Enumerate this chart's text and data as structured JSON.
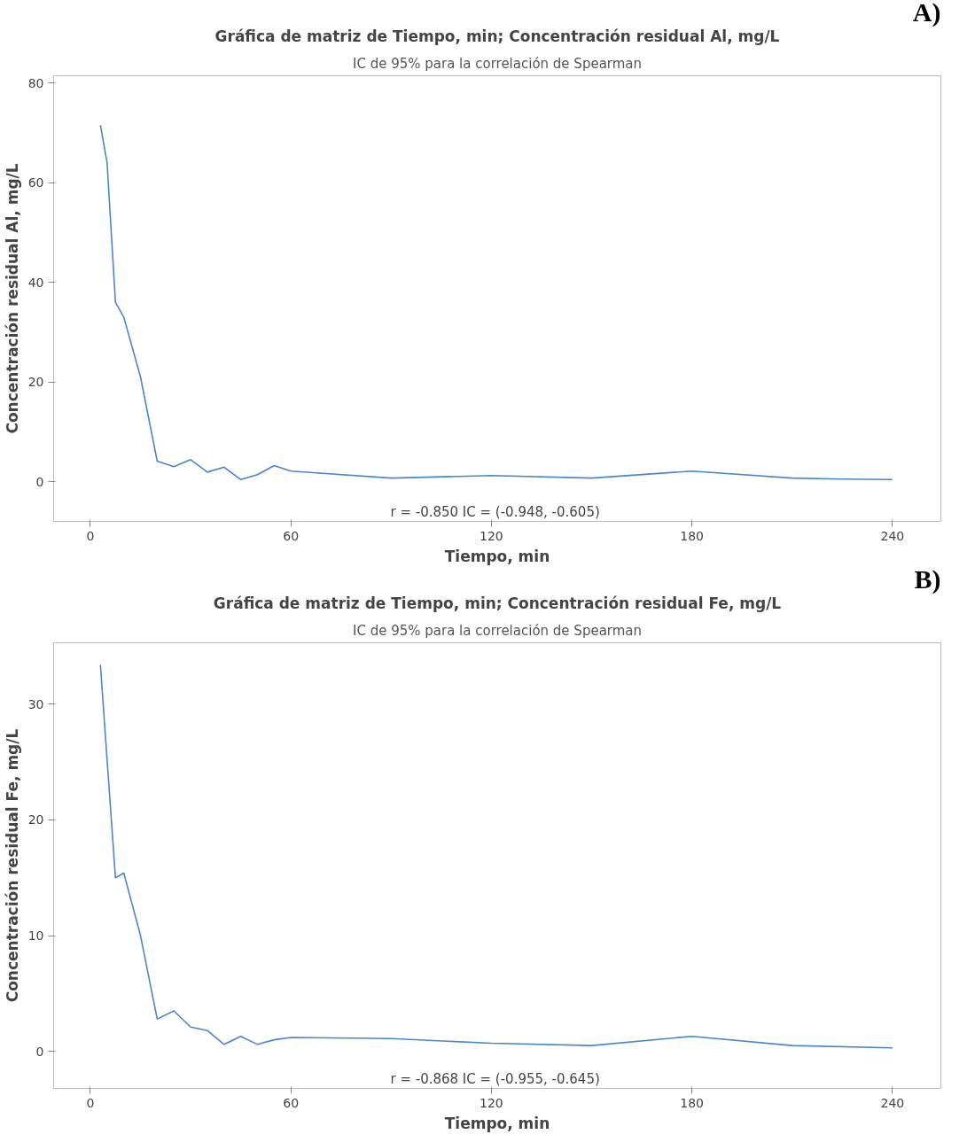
{
  "chart_data": [
    {
      "type": "line",
      "title": "Gráfica de matriz de Tiempo, min; Concentración residual Al, mg/L",
      "subtitle": "IC de 95% para la correlación de Spearman",
      "xlabel": "Tiempo, min",
      "ylabel": "Concentración residual Al, mg/L",
      "x": [
        3,
        5,
        7.5,
        10,
        15,
        20,
        25,
        30,
        35,
        40,
        45,
        50,
        55,
        60,
        90,
        120,
        150,
        180,
        210,
        225,
        240
      ],
      "series": [
        {
          "color": "#4a86c8",
          "values": [
            71.6,
            64,
            36,
            33,
            21,
            4.1,
            3,
            4.4,
            1.9,
            2.9,
            0.4,
            1.4,
            3.2,
            2.1,
            0.7,
            1.2,
            0.7,
            2.1,
            0.7,
            0.5,
            0.4
          ]
        }
      ],
      "xlim": [
        -11,
        254.5
      ],
      "ylim": [
        -8,
        81.5
      ],
      "xticks": [
        0,
        60,
        120,
        180,
        240
      ],
      "yticks": [
        0,
        20,
        40,
        60,
        80
      ],
      "grid": false,
      "annotations": [
        "r = -0.850  IC = (-0.948, -0.605)",
        "A)"
      ]
    },
    {
      "type": "line",
      "title": "Gráfica de matriz de Tiempo, min; Concentración residual Fe, mg/L",
      "subtitle": "IC de 95% para la correlación de Spearman",
      "xlabel": "Tiempo, min",
      "ylabel": "Concentración residual Fe, mg/L",
      "x": [
        3,
        5,
        7.5,
        10,
        15,
        20,
        25,
        30,
        35,
        40,
        45,
        50,
        55,
        60,
        90,
        120,
        150,
        180,
        210,
        240
      ],
      "series": [
        {
          "color": "#4a86c8",
          "values": [
            33.4,
            25.2,
            15.0,
            15.4,
            10.0,
            2.8,
            3.5,
            2.1,
            1.8,
            0.6,
            1.3,
            0.6,
            1.0,
            1.2,
            1.1,
            0.7,
            0.5,
            1.3,
            0.5,
            0.3
          ]
        }
      ],
      "xlim": [
        -11,
        254.5
      ],
      "ylim": [
        -3.2,
        35.3
      ],
      "xticks": [
        0,
        60,
        120,
        180,
        240
      ],
      "yticks": [
        0,
        10,
        20,
        30
      ],
      "grid": false,
      "annotations": [
        "r = -0.868  IC = (-0.955, -0.645)",
        "B)"
      ]
    }
  ]
}
